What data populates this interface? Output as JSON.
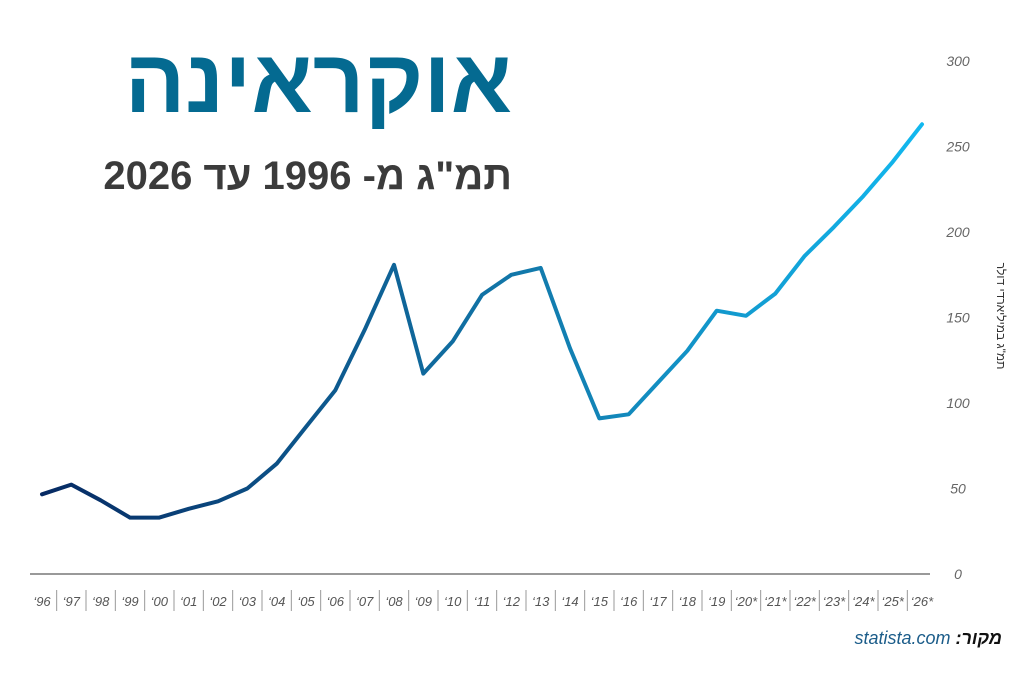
{
  "header": {
    "title": "אוקראינה",
    "subtitle": "תמ\"ג מ- 1996 עד 2026"
  },
  "source": {
    "label": "מקור:",
    "site": "statista.com"
  },
  "colors": {
    "title": "#046a91",
    "line_start": "#062a63",
    "line_mid": "#1279ab",
    "line_end": "#12b8ef"
  },
  "chart_data": {
    "type": "line",
    "title": "",
    "xlabel": "",
    "ylabel": "תמ\"ג במיליארדי דולר",
    "ylim": [
      0,
      300
    ],
    "yticks": [
      0,
      50,
      100,
      150,
      200,
      250,
      300
    ],
    "y_axis_position": "right",
    "grid": false,
    "categories": [
      "‘96",
      "‘97",
      "‘98",
      "‘99",
      "‘00",
      "‘01",
      "‘02",
      "‘03",
      "‘04",
      "‘05",
      "‘06",
      "‘07",
      "‘08",
      "‘09",
      "‘10",
      "‘11",
      "‘12",
      "‘13",
      "‘14",
      "‘15",
      "‘16",
      "‘17",
      "‘18",
      "‘19",
      "‘20*",
      "‘21*",
      "‘22*",
      "‘23*",
      "‘24*",
      "‘25*",
      "‘26*"
    ],
    "series": [
      {
        "values": [
          46.6,
          52.3,
          43.1,
          33.0,
          33.0,
          38.1,
          42.5,
          50.0,
          64.5,
          86.0,
          107.5,
          142.8,
          180.8,
          117.2,
          136.0,
          163.2,
          175.0,
          179.0,
          132.0,
          91.0,
          93.4,
          112.0,
          130.5,
          154.0,
          151.0,
          164.0,
          186.0,
          203.0,
          221.0,
          241.0,
          263.0
        ]
      }
    ]
  }
}
